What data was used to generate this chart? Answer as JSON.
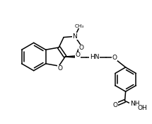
{
  "bg": "#ffffff",
  "lc": "#000000",
  "lw": 1.1,
  "fs": 6.5,
  "figsize": [
    2.15,
    1.75
  ],
  "dpi": 100,
  "xlim": [
    0,
    10
  ],
  "ylim": [
    0,
    8
  ]
}
